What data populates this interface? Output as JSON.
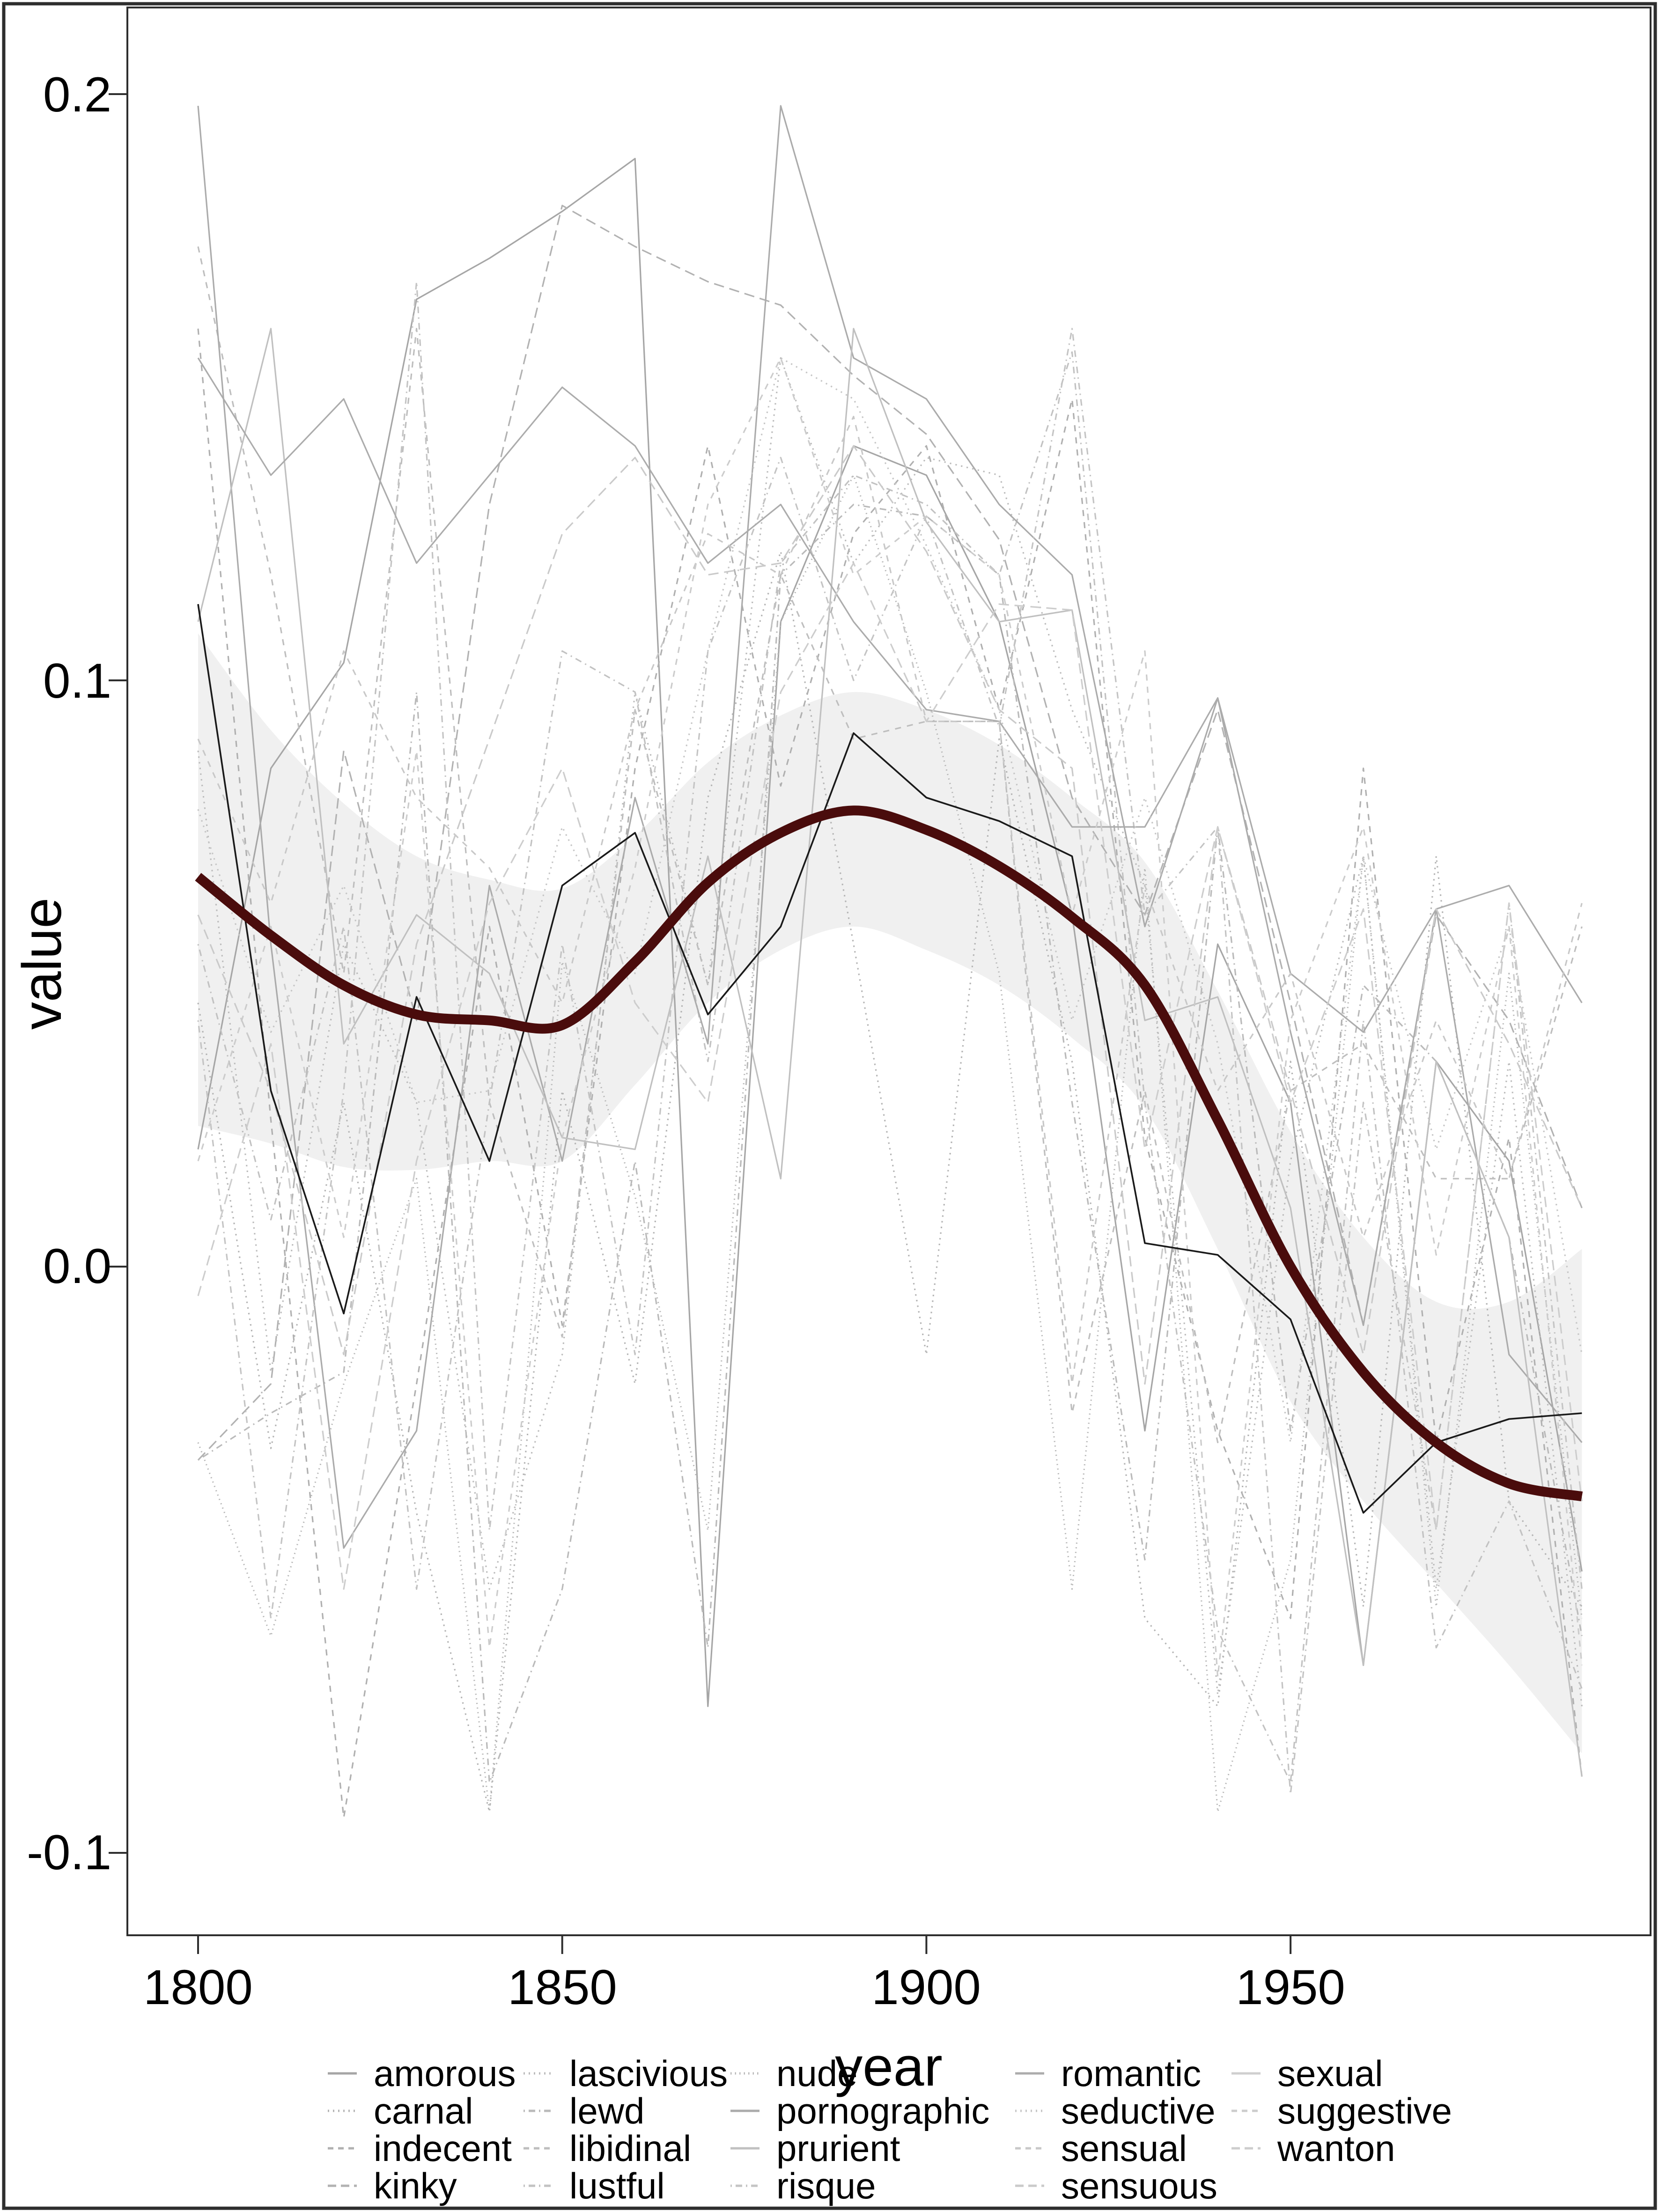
{
  "chart_data": {
    "type": "line",
    "title": "",
    "xlabel": "year",
    "ylabel": "value",
    "x_ticks": [
      1800,
      1850,
      1900,
      1950
    ],
    "y_ticks": [
      0.2,
      0.1,
      0.0,
      -0.1
    ],
    "xlim": [
      1790,
      1999
    ],
    "ylim": [
      -0.114,
      0.215
    ],
    "grid": false,
    "legend_position": "bottom",
    "x": [
      1800,
      1810,
      1820,
      1830,
      1840,
      1850,
      1860,
      1870,
      1880,
      1890,
      1900,
      1910,
      1920,
      1930,
      1940,
      1950,
      1960,
      1970,
      1980,
      1990
    ],
    "series": [
      {
        "name": "amorous",
        "linetype": "solid",
        "color": "#a6a6a6",
        "values": [
          0.02,
          0.085,
          0.103,
          0.165,
          0.172,
          0.18,
          0.189,
          -0.075,
          0.11,
          0.14,
          0.135,
          0.11,
          0.06,
          -0.028,
          0.055,
          0.028,
          -0.068,
          0.035,
          0.018,
          -0.052
        ]
      },
      {
        "name": "carnal",
        "linetype": "dotted",
        "color": "#b4b4b4",
        "values": [
          0.045,
          -0.031,
          0.028,
          -0.042,
          -0.093,
          0.03,
          -0.02,
          0.08,
          0.122,
          0.055,
          -0.015,
          0.09,
          0.035,
          -0.06,
          -0.075,
          0.035,
          -0.058,
          0.07,
          -0.04,
          -0.058
        ]
      },
      {
        "name": "indecent",
        "linetype": "dashed",
        "color": "#b0b0b0",
        "values": [
          0.16,
          0.025,
          -0.094,
          -0.02,
          0.058,
          -0.01,
          0.085,
          0.14,
          0.082,
          0.125,
          0.14,
          0.095,
          0.148,
          0.022,
          -0.028,
          -0.06,
          0.085,
          -0.03,
          0.022,
          -0.087
        ]
      },
      {
        "name": "kinky",
        "linetype": "longdash",
        "color": "#b2b2b2",
        "values": [
          -0.033,
          -0.02,
          0.088,
          0.042,
          0.13,
          0.181,
          0.174,
          0.168,
          0.164,
          0.152,
          0.142,
          0.124,
          0.08,
          0.06,
          0.095,
          0.045,
          -0.01,
          0.06,
          0.042,
          0.01
        ]
      },
      {
        "name": "lascivious",
        "linetype": "dotted",
        "color": "#bcbcbc",
        "values": [
          0.088,
          -0.018,
          0.055,
          0.028,
          -0.055,
          -0.015,
          0.098,
          0.048,
          0.155,
          0.12,
          0.138,
          0.135,
          0.095,
          0.065,
          -0.073,
          0.018,
          0.07,
          -0.055,
          0.035,
          -0.075
        ]
      },
      {
        "name": "lewd",
        "linetype": "dashdot",
        "color": "#bababa",
        "values": [
          -0.033,
          -0.025,
          -0.018,
          0.098,
          -0.088,
          -0.055,
          0.018,
          -0.065,
          0.118,
          0.13,
          0.128,
          0.118,
          0.028,
          -0.05,
          0.075,
          -0.028,
          0.048,
          0.035,
          0.005,
          -0.063
        ]
      },
      {
        "name": "libidinal",
        "linetype": "dashed",
        "color": "#bebebe",
        "values": [
          0.174,
          0.118,
          0.05,
          0.16,
          0.028,
          -0.012,
          0.095,
          0.048,
          0.118,
          0.09,
          0.093,
          0.093,
          -0.025,
          0.03,
          -0.03,
          0.03,
          0.038,
          0.015,
          0.015,
          0.058
        ]
      },
      {
        "name": "lustful",
        "linetype": "dashdot",
        "color": "#c2c2c2",
        "values": [
          0.055,
          0.008,
          0.058,
          -0.055,
          0.028,
          0.105,
          0.098,
          0.035,
          0.12,
          0.135,
          0.13,
          0.118,
          0.156,
          0.028,
          -0.062,
          -0.088,
          0.042,
          -0.065,
          -0.04,
          -0.072
        ]
      },
      {
        "name": "nude",
        "linetype": "finedot",
        "color": "#b8b8b8",
        "values": [
          -0.03,
          -0.063,
          -0.02,
          0.015,
          -0.093,
          0.052,
          0.012,
          -0.045,
          0.11,
          0.135,
          0.098,
          0.05,
          -0.055,
          0.068,
          -0.093,
          -0.05,
          0.07,
          -0.058,
          0.05,
          -0.06
        ]
      },
      {
        "name": "pornographic",
        "linetype": "solid",
        "color": "#ababab",
        "values": [
          0.198,
          0.055,
          -0.048,
          -0.028,
          0.065,
          0.018,
          0.08,
          0.038,
          0.198,
          0.155,
          0.148,
          0.13,
          0.118,
          0.058,
          0.097,
          0.04,
          -0.01,
          0.061,
          -0.015,
          -0.03
        ]
      },
      {
        "name": "prurient",
        "linetype": "solid",
        "color": "#c0c0c0",
        "values": [
          0.11,
          0.16,
          0.038,
          0.06,
          0.05,
          0.022,
          0.02,
          0.07,
          0.015,
          0.16,
          0.127,
          0.11,
          0.112,
          0.042,
          0.046,
          0.01,
          -0.068,
          0.035,
          0.005,
          -0.087
        ]
      },
      {
        "name": "risque",
        "linetype": "dashdot",
        "color": "#c4c4c4",
        "values": [
          0.042,
          -0.06,
          0.03,
          0.168,
          -0.045,
          0.055,
          -0.015,
          0.105,
          0.138,
          0.1,
          0.128,
          0.092,
          0.16,
          0.06,
          0.075,
          -0.09,
          0.028,
          -0.045,
          0.062,
          -0.055
        ]
      },
      {
        "name": "romantic",
        "linetype": "solid",
        "color": "#acacac",
        "values": [
          0.155,
          0.135,
          0.148,
          0.12,
          0.135,
          0.15,
          0.14,
          0.12,
          0.13,
          0.11,
          0.095,
          0.093,
          0.075,
          0.075,
          0.097,
          0.05,
          0.04,
          0.061,
          0.065,
          0.045
        ]
      },
      {
        "name": "seductive",
        "linetype": "dotted",
        "color": "#c6c6c6",
        "values": [
          0.078,
          0.04,
          0.065,
          0.028,
          0.03,
          0.075,
          0.05,
          0.105,
          0.155,
          0.148,
          0.123,
          0.095,
          0.042,
          0.08,
          0.038,
          -0.03,
          0.07,
          0.02,
          0.058,
          -0.015
        ]
      },
      {
        "name": "sensual",
        "linetype": "dashed",
        "color": "#c8c8c8",
        "values": [
          0.09,
          0.062,
          0.105,
          0.08,
          0.068,
          0.045,
          0.095,
          0.125,
          0.118,
          0.145,
          0.093,
          0.093,
          -0.02,
          0.065,
          0.03,
          0.05,
          0.005,
          0.042,
          0.015,
          0.062
        ]
      },
      {
        "name": "sensuous",
        "linetype": "longdash",
        "color": "#cacaca",
        "values": [
          0.06,
          0.03,
          -0.015,
          0.055,
          0.09,
          0.125,
          0.138,
          0.118,
          0.12,
          0.14,
          0.122,
          0.095,
          0.085,
          -0.02,
          0.075,
          0.03,
          -0.015,
          0.061,
          0.038,
          0.01
        ]
      },
      {
        "name": "sexual",
        "linetype": "solid",
        "color": "#1a1a1a",
        "values": [
          0.113,
          0.03,
          -0.008,
          0.046,
          0.018,
          0.065,
          0.074,
          0.043,
          0.058,
          0.091,
          0.08,
          0.076,
          0.07,
          0.004,
          0.002,
          -0.009,
          -0.042,
          -0.03,
          -0.026,
          -0.025
        ]
      },
      {
        "name": "suggestive",
        "linetype": "dashed",
        "color": "#cccccc",
        "values": [
          0.018,
          0.058,
          0.005,
          0.088,
          -0.065,
          0.022,
          0.068,
          0.13,
          0.155,
          0.118,
          0.128,
          0.118,
          0.06,
          0.105,
          -0.07,
          0.042,
          0.075,
          0.002,
          0.058,
          -0.068
        ]
      },
      {
        "name": "wanton",
        "linetype": "longdash",
        "color": "#cdcdcd",
        "values": [
          -0.005,
          0.038,
          -0.055,
          0.018,
          0.062,
          0.085,
          0.045,
          0.028,
          0.098,
          0.12,
          0.093,
          0.113,
          0.112,
          0.02,
          0.075,
          0.028,
          0.061,
          -0.045,
          0.062,
          -0.04
        ]
      }
    ],
    "smooth_trend": {
      "name": "loess-trend",
      "color": "#4a0c0c",
      "values": [
        0.0665,
        0.0565,
        0.048,
        0.043,
        0.042,
        0.0412,
        0.052,
        0.0655,
        0.074,
        0.0778,
        0.0745,
        0.0683,
        0.0596,
        0.048,
        0.025,
        0.0,
        -0.018,
        -0.03,
        -0.037,
        -0.0392
      ]
    },
    "confidence_band": {
      "color": "#f0f0f0",
      "upper": [
        0.108,
        0.0915,
        0.079,
        0.07,
        0.066,
        0.0645,
        0.0735,
        0.086,
        0.094,
        0.098,
        0.095,
        0.089,
        0.08,
        0.069,
        0.047,
        0.023,
        0.005,
        -0.006,
        -0.006,
        0.003
      ],
      "lower": [
        0.024,
        0.021,
        0.017,
        0.0165,
        0.018,
        0.018,
        0.031,
        0.045,
        0.054,
        0.058,
        0.054,
        0.048,
        0.039,
        0.027,
        0.003,
        -0.023,
        -0.04,
        -0.054,
        -0.068,
        -0.083
      ]
    }
  },
  "axes": {
    "x_title": "year",
    "y_title": "value",
    "x_tick_labels": [
      "1800",
      "1850",
      "1900",
      "1950"
    ],
    "y_tick_labels": [
      "0.2",
      "0.1",
      "0.0",
      "-0.1"
    ]
  },
  "legend": {
    "columns": [
      [
        "amorous",
        "carnal",
        "indecent",
        "kinky"
      ],
      [
        "lascivious",
        "lewd",
        "libidinal",
        "lustful"
      ],
      [
        "nude",
        "pornographic",
        "prurient",
        "risque"
      ],
      [
        "romantic",
        "seductive",
        "sensual",
        "sensuous"
      ],
      [
        "sexual",
        "suggestive",
        "wanton"
      ]
    ]
  },
  "colors": {
    "trend": "#4a0c0c",
    "band": "#f0f0f0",
    "panel_border": "#2e2e2e",
    "frame": "#2e2e2e"
  }
}
